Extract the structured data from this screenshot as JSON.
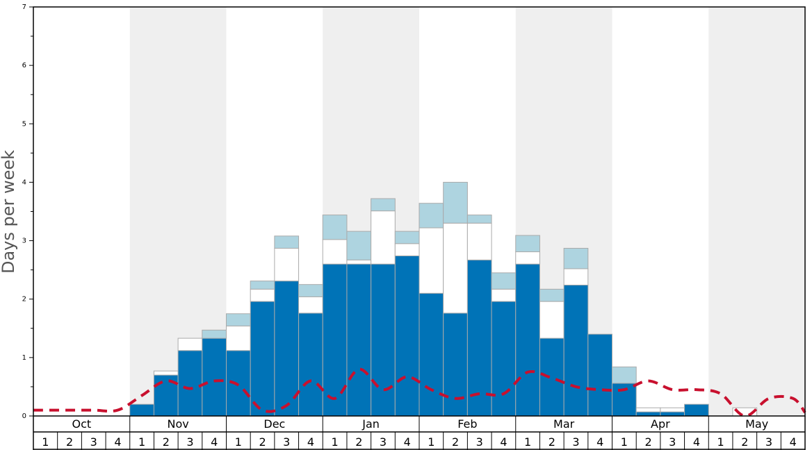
{
  "chart_data": {
    "type": "bar",
    "ylabel": "Days per week",
    "ylim": [
      0,
      7
    ],
    "ytick_labels": [
      "0",
      "1",
      "2",
      "3",
      "4",
      "5",
      "6",
      "7"
    ],
    "months": [
      "Oct",
      "Nov",
      "Dec",
      "Jan",
      "Feb",
      "Mar",
      "Apr",
      "May"
    ],
    "week_labels": [
      "1",
      "2",
      "3",
      "4"
    ],
    "stacked": true,
    "alternating_month_shading": true,
    "colors": {
      "base": "#0073b7",
      "middle": "#ffffff",
      "top": "#aed4e0",
      "bar_border": "#aaaaaa",
      "dashed_line": "#c8102e",
      "shading": "#efefef",
      "frame": "#000000"
    },
    "series": [
      {
        "values": [
          0,
          0,
          0,
          0,
          0.2,
          0.7,
          1.12,
          1.33,
          1.12,
          1.96,
          2.31,
          1.76,
          2.6,
          2.6,
          2.6,
          2.74,
          2.1,
          1.76,
          2.67,
          1.96,
          2.6,
          1.33,
          2.24,
          1.4,
          0.56,
          0.07,
          0.07,
          0.2,
          0,
          0,
          0,
          0
        ]
      },
      {
        "values": [
          0,
          0,
          0,
          0,
          0,
          0.07,
          0.21,
          0,
          0.42,
          0.21,
          0.56,
          0.28,
          0.42,
          0.07,
          0.91,
          0.21,
          1.12,
          1.54,
          0.63,
          0.21,
          0.21,
          0.63,
          0.28,
          0,
          0,
          0.07,
          0.07,
          0,
          0,
          0.14,
          0,
          0
        ]
      },
      {
        "values": [
          0,
          0,
          0,
          0,
          0,
          0,
          0,
          0.14,
          0.21,
          0.14,
          0.21,
          0.21,
          0.42,
          0.49,
          0.21,
          0.21,
          0.42,
          0.7,
          0.14,
          0.28,
          0.28,
          0.21,
          0.35,
          0,
          0.28,
          0,
          0,
          0,
          0,
          0,
          0,
          0
        ]
      },
      {
        "values": [
          0.1,
          0.1,
          0.1,
          0.1,
          0.35,
          0.6,
          0.47,
          0.6,
          0.53,
          0.1,
          0.18,
          0.6,
          0.3,
          0.8,
          0.45,
          0.67,
          0.45,
          0.3,
          0.38,
          0.38,
          0.75,
          0.65,
          0.5,
          0.45,
          0.45,
          0.6,
          0.45,
          0.45,
          0.38,
          0,
          0.3,
          0.3
        ]
      }
    ]
  }
}
